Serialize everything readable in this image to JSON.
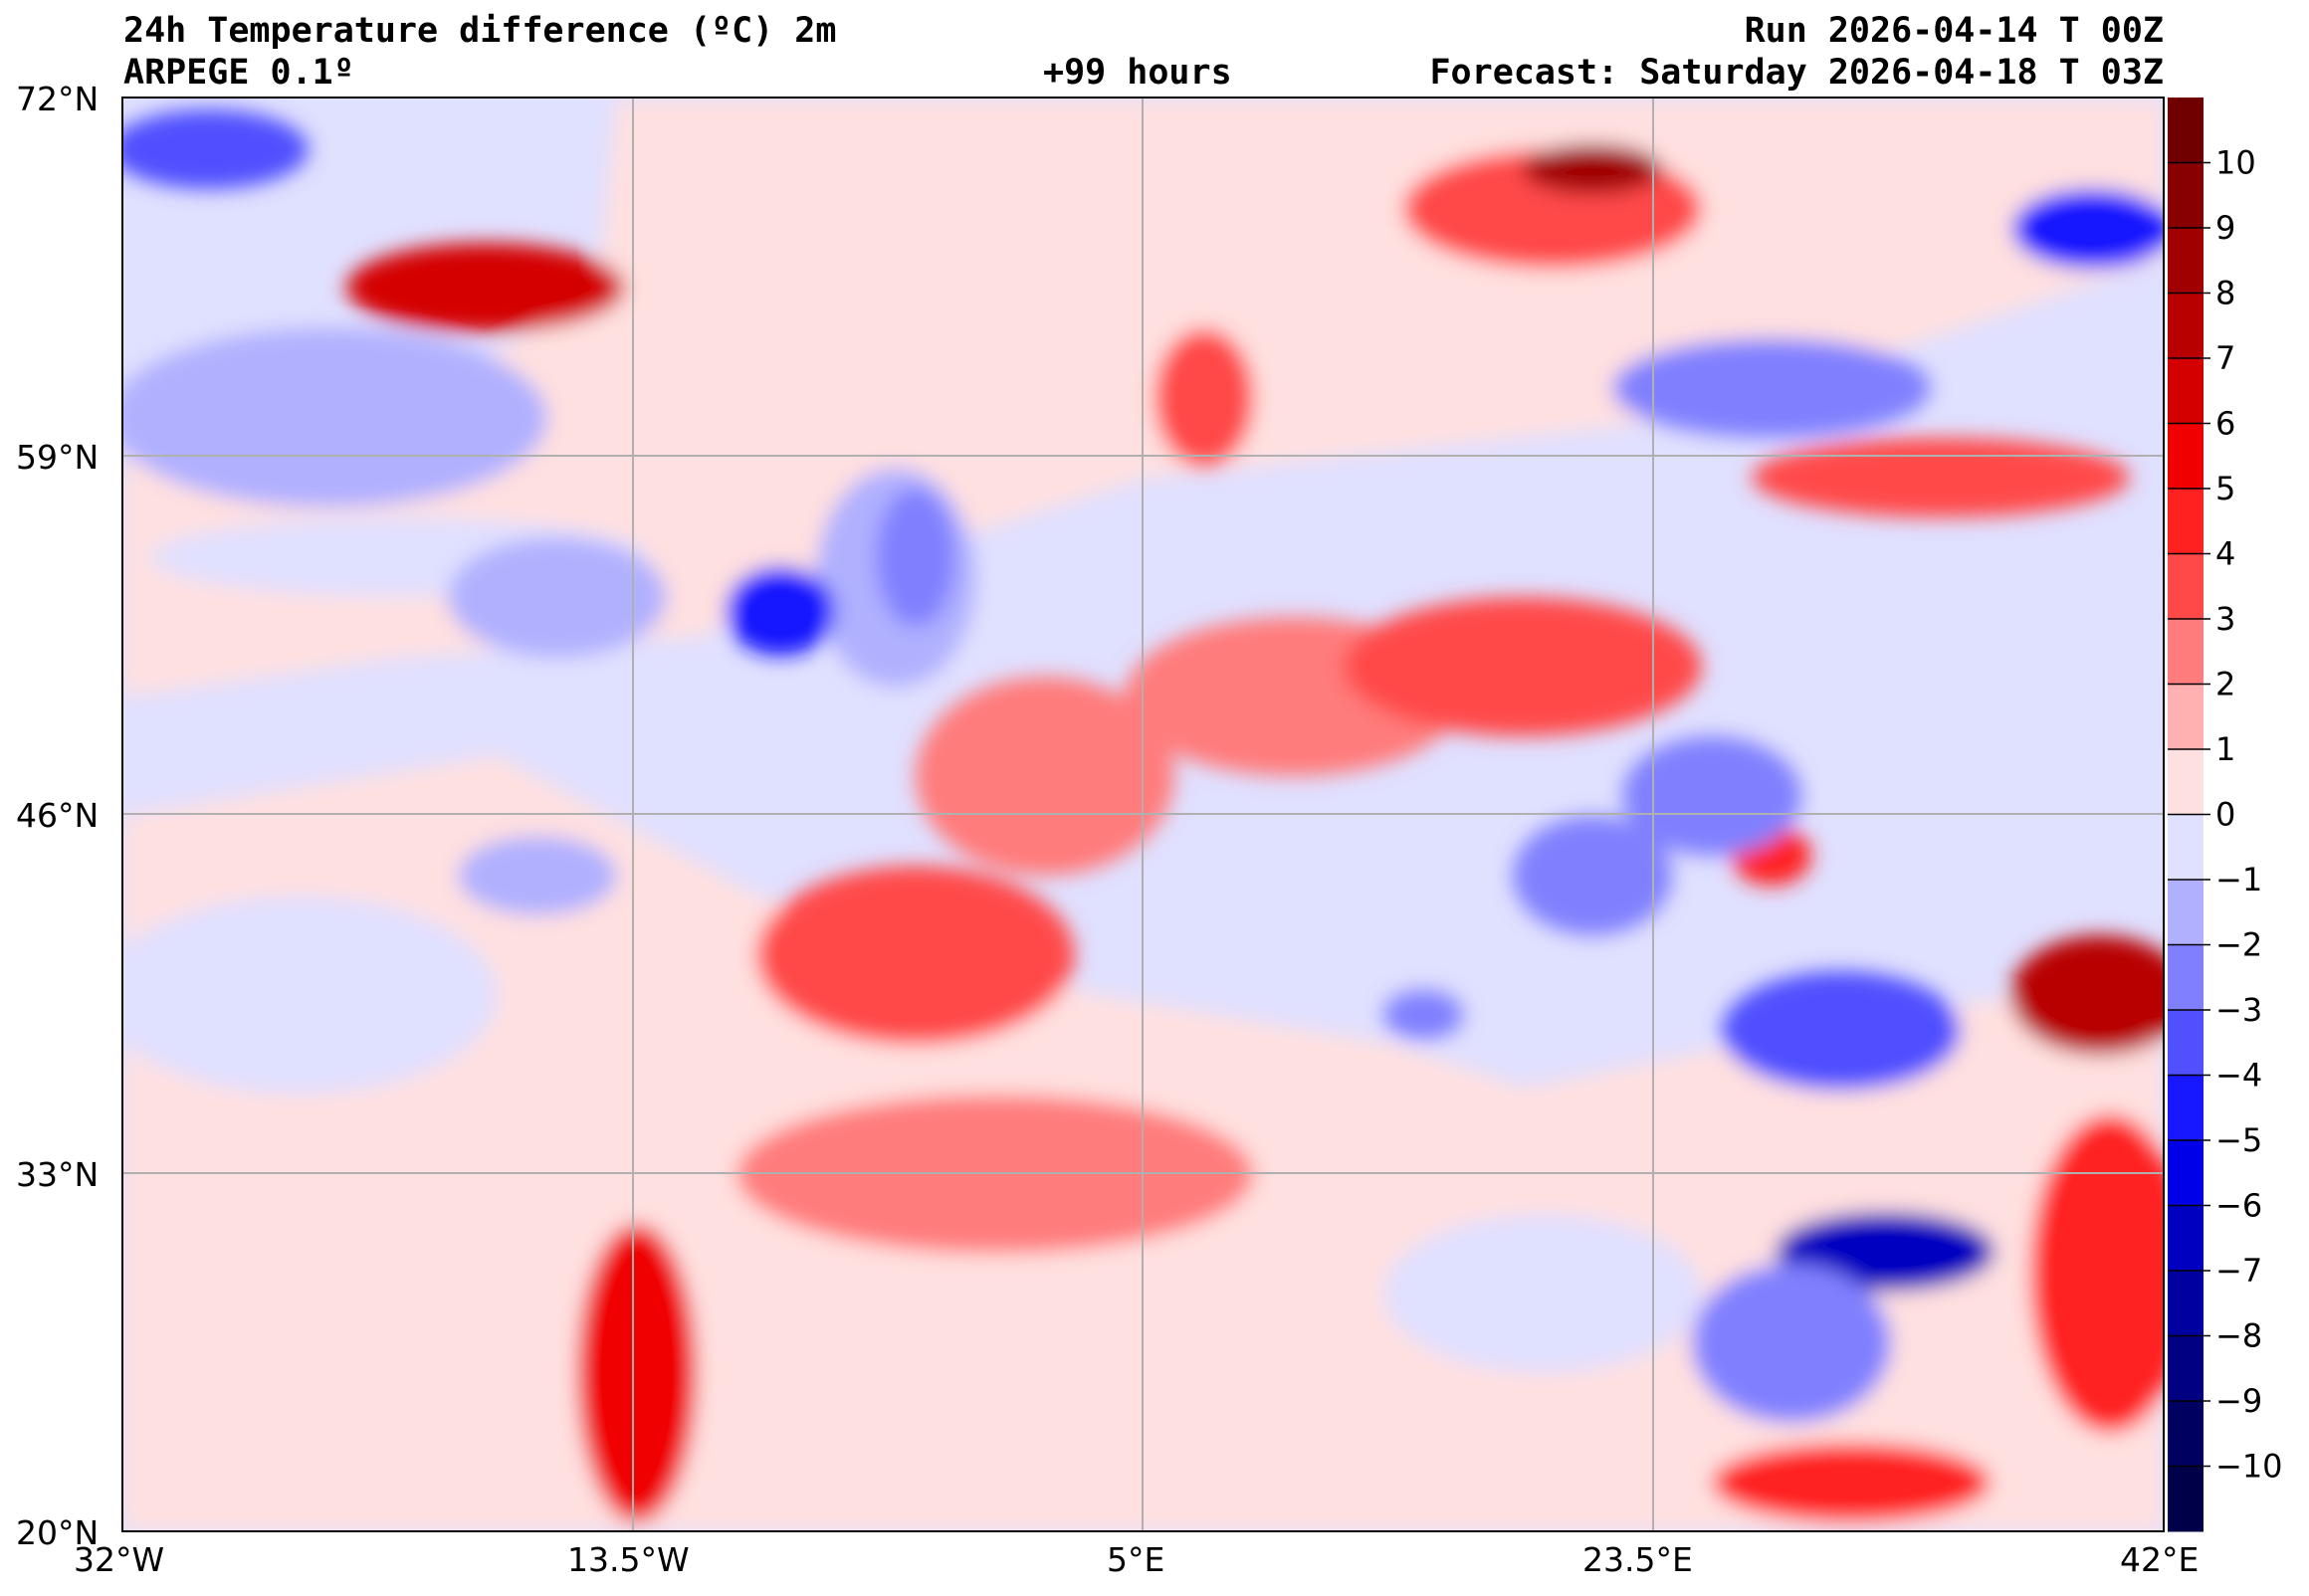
{
  "header": {
    "title": "24h Temperature difference (ºC) 2m",
    "run": "Run 2026-04-14 T 00Z",
    "model": "ARPEGE 0.1º",
    "lead": "+99 hours",
    "forecast": "Forecast: Saturday 2026-04-18 T 03Z"
  },
  "chart_data": {
    "type": "heatmap",
    "title": "24h Temperature difference (ºC) 2m",
    "lat_ticks": [
      "72°N",
      "59°N",
      "46°N",
      "33°N",
      "20°N"
    ],
    "lon_ticks": [
      "32°W",
      "13.5°W",
      "5°E",
      "23.5°E",
      "42°E"
    ],
    "lat_range": [
      20,
      72
    ],
    "lon_range": [
      -32,
      42
    ],
    "grid": true,
    "colorbar": {
      "placement": "right",
      "ticks": [
        "10",
        "9",
        "8",
        "7",
        "6",
        "5",
        "4",
        "3",
        "2",
        "1",
        "0",
        "−1",
        "−2",
        "−3",
        "−4",
        "−5",
        "−6",
        "−7",
        "−8",
        "−9",
        "−10"
      ],
      "range": [
        -10,
        10
      ],
      "extend": "both",
      "colors": [
        "#700000",
        "#880000",
        "#a00000",
        "#b80000",
        "#d40000",
        "#f00000",
        "#ff2020",
        "#ff4848",
        "#ff7c7c",
        "#ffb0b0",
        "#ffe0e0",
        "#e0e0ff",
        "#b0b0ff",
        "#8080ff",
        "#5050ff",
        "#1818ff",
        "#0000e8",
        "#0000c0",
        "#0000a0",
        "#000080",
        "#000060",
        "#000048"
      ]
    }
  }
}
